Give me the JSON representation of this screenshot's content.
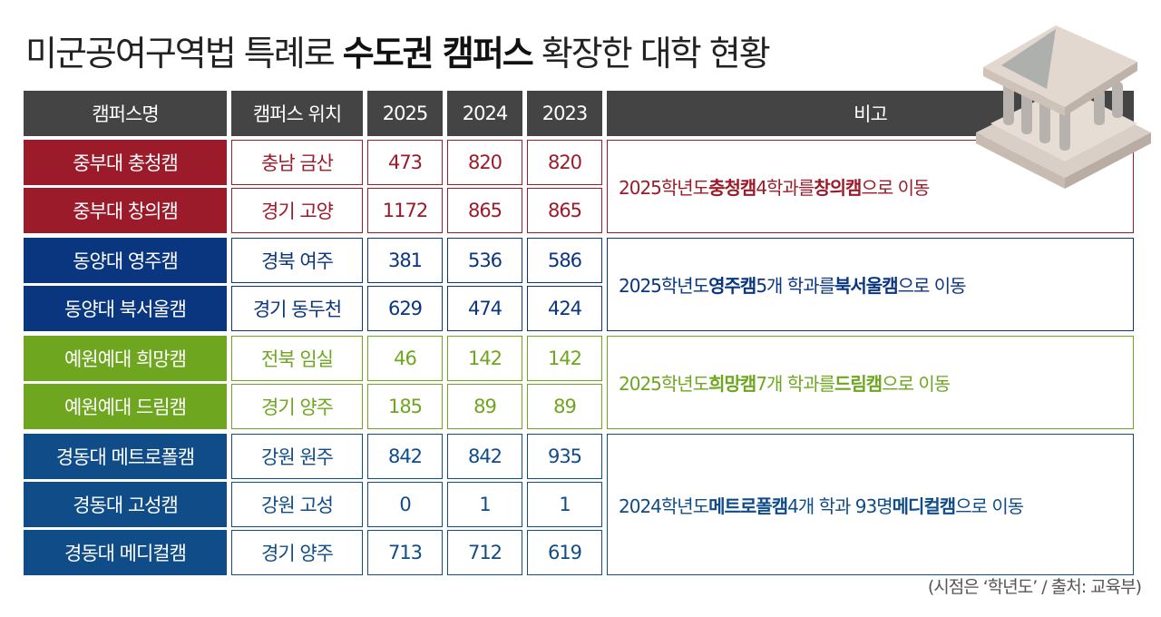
{
  "title": {
    "pre": "미군공여구역법 특례로 ",
    "bold": "수도권 캠퍼스",
    "post": " 확장한 대학 현황"
  },
  "headers": [
    "캠퍼스명",
    "캠퍼스 위치",
    "2025",
    "2024",
    "2023",
    "비고"
  ],
  "colors": {
    "header": "#444444",
    "jungbu": "#9b1b2b",
    "dongyang": "#0a3680",
    "yewon": "#6ea61f",
    "kyungdong": "#0f4c88"
  },
  "groups": [
    {
      "color_key": "jungbu",
      "rows": [
        {
          "name": "중부대 충청캠",
          "location": "충남 금산",
          "y2025": "473",
          "y2024": "820",
          "y2023": "820"
        },
        {
          "name": "중부대 창의캠",
          "location": "경기 고양",
          "y2025": "1172",
          "y2024": "865",
          "y2023": "865"
        }
      ],
      "remark": [
        {
          "t": "2025학년도 "
        },
        {
          "t": "충청캠",
          "b": true
        },
        {
          "t": " 4학과를 "
        },
        {
          "t": "창의캠",
          "b": true
        },
        {
          "t": "으로 이동"
        }
      ]
    },
    {
      "color_key": "dongyang",
      "rows": [
        {
          "name": "동양대 영주캠",
          "location": "경북 여주",
          "y2025": "381",
          "y2024": "536",
          "y2023": "586"
        },
        {
          "name": "동양대 북서울캠",
          "location": "경기 동두천",
          "y2025": "629",
          "y2024": "474",
          "y2023": "424"
        }
      ],
      "remark": [
        {
          "t": "2025학년도 "
        },
        {
          "t": "영주캠",
          "b": true
        },
        {
          "t": " 5개 학과를 "
        },
        {
          "t": "북서울캠",
          "b": true
        },
        {
          "t": "으로 이동"
        }
      ]
    },
    {
      "color_key": "yewon",
      "rows": [
        {
          "name": "예원예대 희망캠",
          "location": "전북 임실",
          "y2025": "46",
          "y2024": "142",
          "y2023": "142"
        },
        {
          "name": "예원예대 드림캠",
          "location": "경기 양주",
          "y2025": "185",
          "y2024": "89",
          "y2023": "89"
        }
      ],
      "remark": [
        {
          "t": "2025학년도 "
        },
        {
          "t": "희망캠",
          "b": true
        },
        {
          "t": " 7개 학과를 "
        },
        {
          "t": "드림캠",
          "b": true
        },
        {
          "t": "으로 이동"
        }
      ]
    },
    {
      "color_key": "kyungdong",
      "rows": [
        {
          "name": "경동대 메트로폴캠",
          "location": "강원 원주",
          "y2025": "842",
          "y2024": "842",
          "y2023": "935"
        },
        {
          "name": "경동대 고성캠",
          "location": "강원 고성",
          "y2025": "0",
          "y2024": "1",
          "y2023": "1"
        },
        {
          "name": "경동대 메디컬캠",
          "location": "경기 양주",
          "y2025": "713",
          "y2024": "712",
          "y2023": "619"
        }
      ],
      "remark": [
        {
          "t": "2024학년도 "
        },
        {
          "t": "메트로폴캠",
          "b": true
        },
        {
          "t": " 4개 학과 93명 "
        },
        {
          "t": "메디컬캠",
          "b": true
        },
        {
          "t": "으로 이동"
        }
      ]
    }
  ],
  "source": "(시점은 ‘학년도’ / 출처: 교육부)",
  "illustration": "university-building-icon"
}
